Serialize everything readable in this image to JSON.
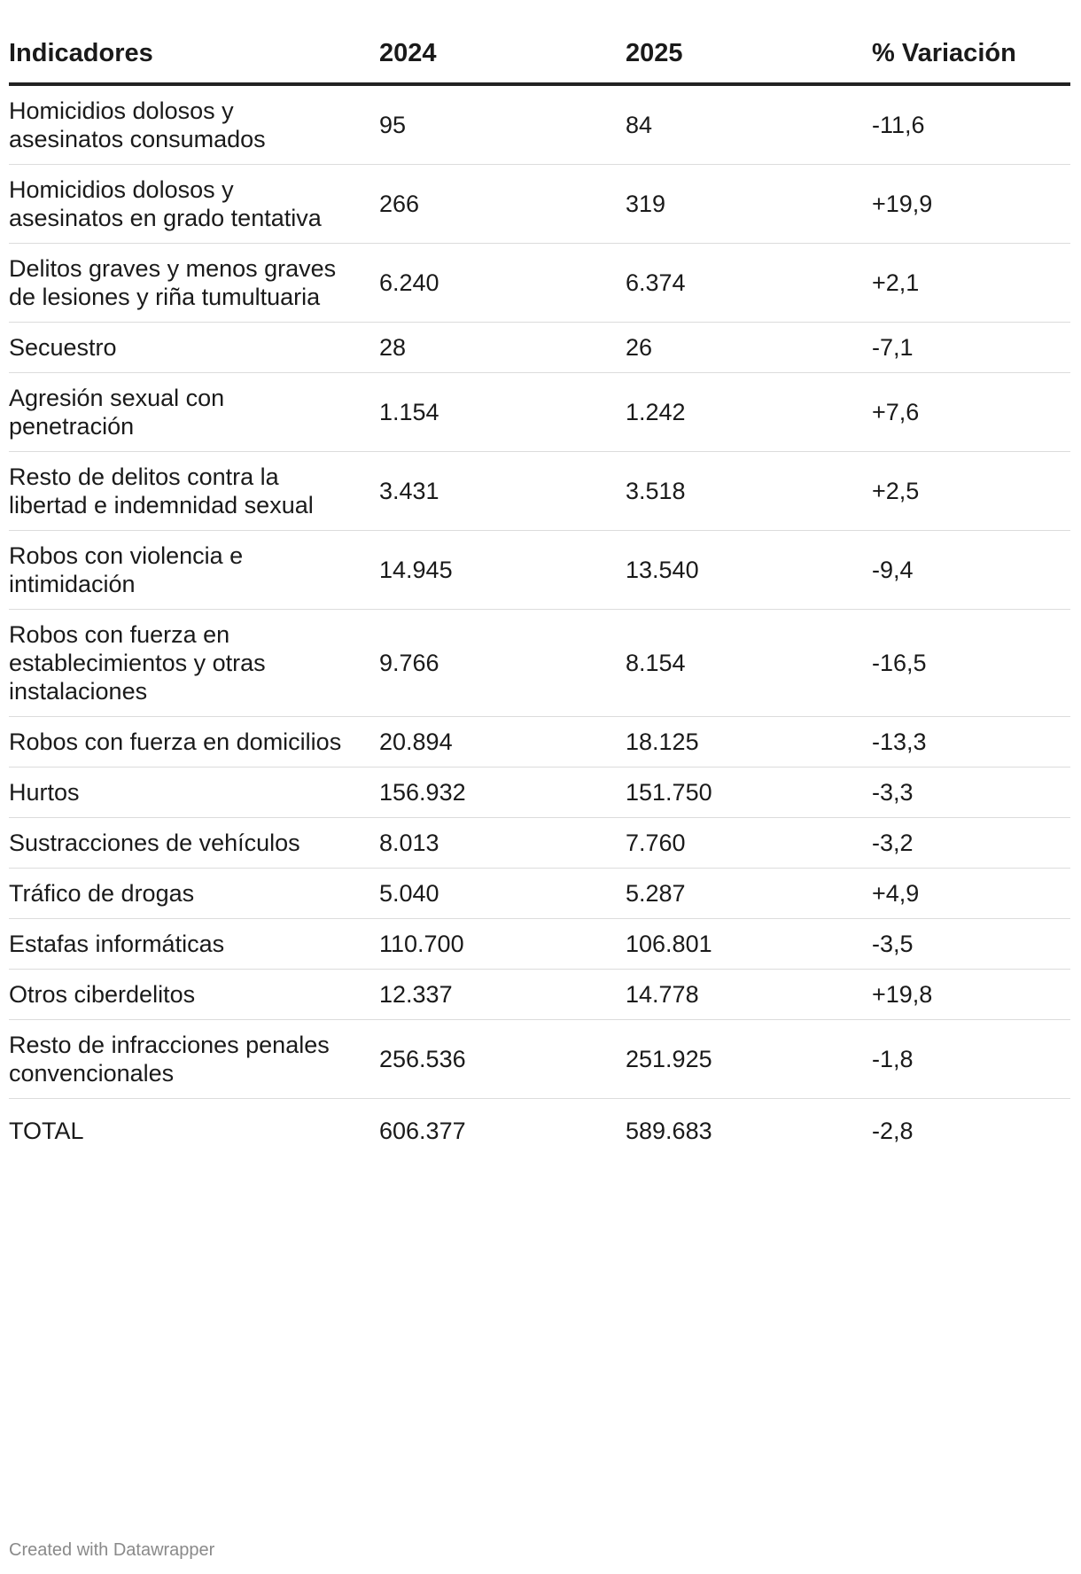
{
  "chart_data": {
    "type": "table",
    "columns": [
      "Indicadores",
      "2024",
      "2025",
      "% Variación"
    ],
    "rows": [
      {
        "indicator": "Homicidios dolosos y asesinatos consumados",
        "y2024": "95",
        "y2025": "84",
        "variation": "-11,6"
      },
      {
        "indicator": "Homicidios dolosos y asesinatos en grado tentativa",
        "y2024": "266",
        "y2025": "319",
        "variation": "+19,9"
      },
      {
        "indicator": "Delitos graves y menos graves de lesiones y riña tumultuaria",
        "y2024": "6.240",
        "y2025": "6.374",
        "variation": "+2,1"
      },
      {
        "indicator": "Secuestro",
        "y2024": "28",
        "y2025": "26",
        "variation": "-7,1"
      },
      {
        "indicator": "Agresión sexual con penetración",
        "y2024": "1.154",
        "y2025": "1.242",
        "variation": "+7,6"
      },
      {
        "indicator": "Resto de delitos contra la libertad e indemnidad sexual",
        "y2024": "3.431",
        "y2025": "3.518",
        "variation": "+2,5"
      },
      {
        "indicator": "Robos con violencia e intimidación",
        "y2024": "14.945",
        "y2025": "13.540",
        "variation": "-9,4"
      },
      {
        "indicator": "Robos con fuerza en establecimientos y otras instalaciones",
        "y2024": "9.766",
        "y2025": "8.154",
        "variation": "-16,5"
      },
      {
        "indicator": "Robos con fuerza en domicilios",
        "y2024": "20.894",
        "y2025": "18.125",
        "variation": "-13,3"
      },
      {
        "indicator": "Hurtos",
        "y2024": "156.932",
        "y2025": "151.750",
        "variation": "-3,3"
      },
      {
        "indicator": "Sustracciones de vehículos",
        "y2024": "8.013",
        "y2025": "7.760",
        "variation": "-3,2"
      },
      {
        "indicator": "Tráfico de drogas",
        "y2024": "5.040",
        "y2025": "5.287",
        "variation": "+4,9"
      },
      {
        "indicator": "Estafas informáticas",
        "y2024": "110.700",
        "y2025": "106.801",
        "variation": "-3,5"
      },
      {
        "indicator": "Otros ciberdelitos",
        "y2024": "12.337",
        "y2025": "14.778",
        "variation": "+19,8"
      },
      {
        "indicator": "Resto de infracciones penales convencionales",
        "y2024": "256.536",
        "y2025": "251.925",
        "variation": "-1,8"
      },
      {
        "indicator": "TOTAL",
        "y2024": "606.377",
        "y2025": "589.683",
        "variation": "-2,8"
      }
    ]
  },
  "credit": "Created with Datawrapper",
  "colors": {
    "text": "#1a1a1a",
    "header_rule": "#222222",
    "row_divider": "#dcdcdc",
    "credit": "#8a8a8a"
  }
}
